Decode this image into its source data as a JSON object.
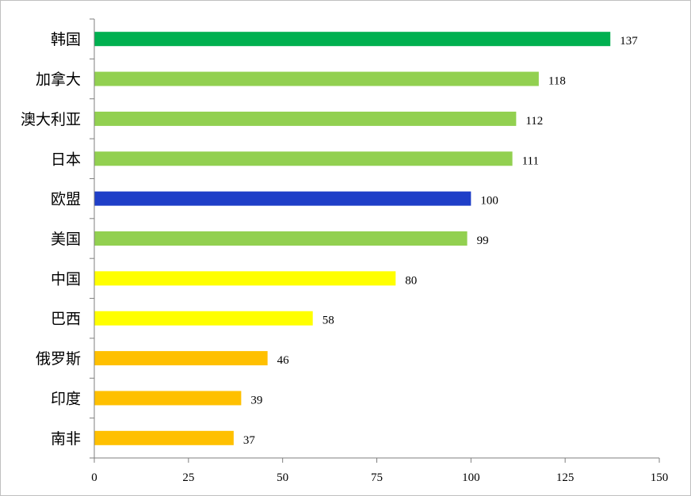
{
  "chart_data": {
    "type": "bar",
    "orientation": "horizontal",
    "title": "",
    "xlabel": "",
    "ylabel": "",
    "xlim": [
      0,
      150
    ],
    "xticks": [
      "0",
      "25",
      "50",
      "75",
      "100",
      "125",
      "150"
    ],
    "grid": false,
    "legend": "none",
    "categories": [
      "韩国",
      "加拿大",
      "澳大利亚",
      "日本",
      "欧盟",
      "美国",
      "中国",
      "巴西",
      "俄罗斯",
      "印度",
      "南非"
    ],
    "values": [
      137,
      118,
      112,
      111,
      100,
      99,
      80,
      58,
      46,
      39,
      37
    ],
    "value_labels": [
      "137",
      "118",
      "112",
      "111",
      "100",
      "99",
      "80",
      "58",
      "46",
      "39",
      "37"
    ],
    "colors": [
      "#00b050",
      "#92d050",
      "#92d050",
      "#92d050",
      "#1f3fc8",
      "#92d050",
      "#ffff00",
      "#ffff00",
      "#ffc000",
      "#ffc000",
      "#ffc000"
    ]
  }
}
